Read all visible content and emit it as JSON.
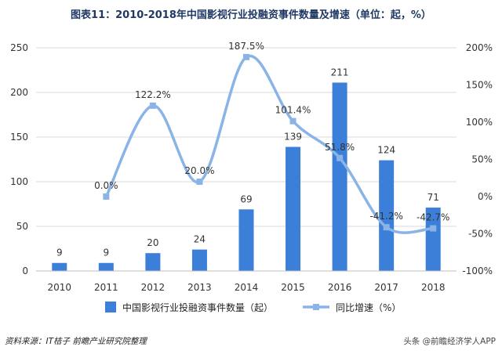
{
  "title": "图表11：2010-2018年中国影视行业投融资事件数量及增速（单位：起，%）",
  "footer_source": "资料来源：IT桔子 前瞻产业研究院整理",
  "watermark": "头条 @前瞻经济学人APP",
  "colors": {
    "bar": "#3c7fd9",
    "line": "#8ab4e8",
    "title": "#1f3864"
  },
  "chart_data": {
    "type": "bar",
    "categories": [
      "2010",
      "2011",
      "2012",
      "2013",
      "2014",
      "2015",
      "2016",
      "2017",
      "2018"
    ],
    "series": [
      {
        "name": "中国影视行业投融资事件数量（起）",
        "type": "bar",
        "axis": "left",
        "values": [
          9,
          9,
          20,
          24,
          69,
          139,
          211,
          124,
          71
        ],
        "labels": [
          "9",
          "9",
          "20",
          "24",
          "69",
          "139",
          "211",
          "124",
          "71"
        ]
      },
      {
        "name": "同比增速（%）",
        "type": "line",
        "axis": "right",
        "values": [
          null,
          0.0,
          122.2,
          20.0,
          187.5,
          101.4,
          51.8,
          -41.2,
          -42.7
        ],
        "labels": [
          "",
          "0.0%",
          "122.2%",
          "20.0%",
          "187.5%",
          "101.4%",
          "51.8%",
          "-41.2%",
          "-42.7%"
        ]
      }
    ],
    "y_left": {
      "min": 0,
      "max": 250,
      "ticks": [
        "0",
        "50",
        "100",
        "150",
        "200",
        "250"
      ]
    },
    "y_right": {
      "min": -100,
      "max": 200,
      "ticks": [
        "-100%",
        "-50%",
        "0%",
        "50%",
        "100%",
        "150%",
        "200%"
      ]
    },
    "grid": true,
    "legend_position": "bottom"
  }
}
